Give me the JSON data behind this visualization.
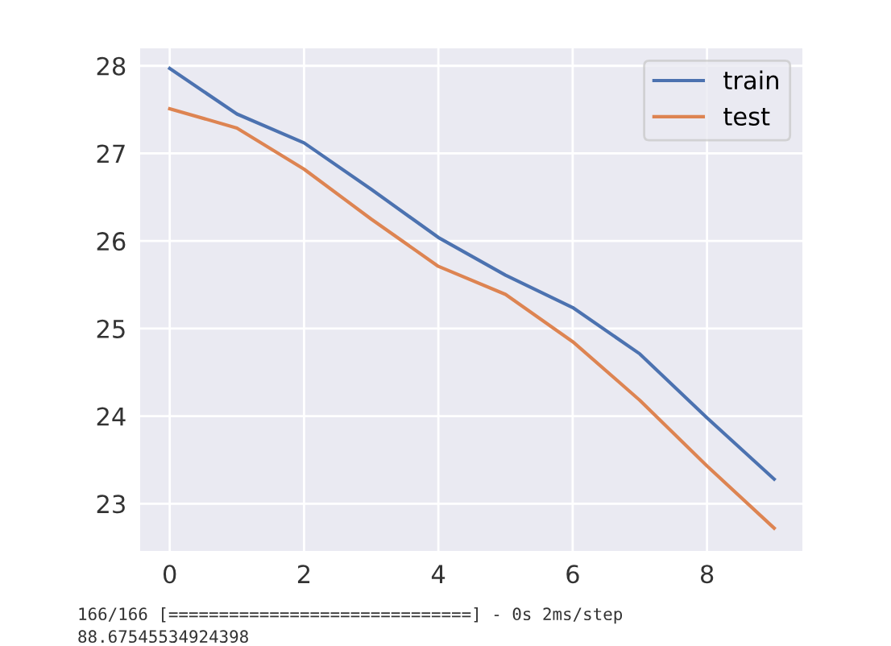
{
  "chart_data": {
    "type": "line",
    "x": [
      0,
      1,
      2,
      3,
      4,
      5,
      6,
      7,
      8,
      9
    ],
    "series": [
      {
        "name": "train",
        "color": "#4c72b0",
        "values": [
          27.97,
          27.45,
          27.12,
          26.59,
          26.04,
          25.61,
          25.24,
          24.71,
          23.98,
          23.28
        ]
      },
      {
        "name": "test",
        "color": "#dd8452",
        "values": [
          27.51,
          27.29,
          26.82,
          26.25,
          25.71,
          25.39,
          24.85,
          24.18,
          23.43,
          22.72
        ]
      }
    ],
    "xlim": [
      -0.44,
      9.42
    ],
    "xticks": [
      0,
      2,
      4,
      6,
      8
    ],
    "ylim": [
      22.46,
      28.2
    ],
    "yticks": [
      23,
      24,
      25,
      26,
      27,
      28
    ],
    "grid": true,
    "legend": "top right",
    "annotations": [
      "166/166 [==============================] - 0s 2ms/step",
      "88.67545534924398"
    ]
  }
}
